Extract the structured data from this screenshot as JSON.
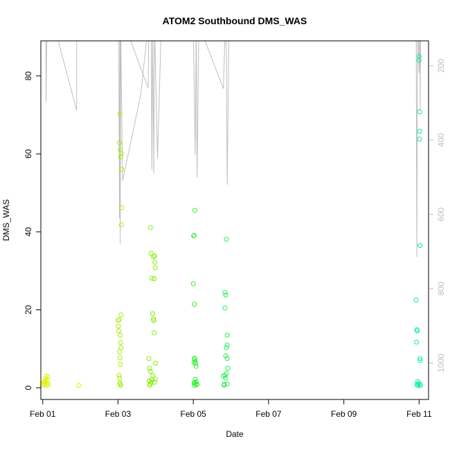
{
  "chart_data": {
    "type": "scatter",
    "title": "ATOM2 Southbound DMS_WAS",
    "xlabel": "Date",
    "ylabel": "DMS_WAS",
    "x_unit": "days (Feb)",
    "xlim": [
      0.95,
      11.25
    ],
    "ylim": [
      -3,
      89
    ],
    "x_ticks": [
      {
        "value": 1,
        "label": "Feb 01"
      },
      {
        "value": 3,
        "label": "Feb 03"
      },
      {
        "value": 5,
        "label": "Feb 05"
      },
      {
        "value": 7,
        "label": "Feb 07"
      },
      {
        "value": 9,
        "label": "Feb 09"
      },
      {
        "value": 11,
        "label": "Feb 11"
      }
    ],
    "y_ticks": [
      0,
      20,
      40,
      60,
      80
    ],
    "right_axis": {
      "color": "#bebebe",
      "reversed": true,
      "ylim": [
        1098,
        133
      ],
      "ticks": [
        200,
        400,
        600,
        800,
        1000
      ]
    },
    "series": [
      {
        "color": "#e0f000",
        "points": [
          [
            1.0,
            0.8
          ],
          [
            1.02,
            1.3
          ],
          [
            1.04,
            0.7
          ],
          [
            1.06,
            1.8
          ],
          [
            1.08,
            2.4
          ],
          [
            1.09,
            3.0
          ],
          [
            1.1,
            1.1
          ],
          [
            1.12,
            2.0
          ],
          [
            1.14,
            2.8
          ],
          [
            1.15,
            0.9
          ],
          [
            1.05,
            1.5
          ],
          [
            1.11,
            0.6
          ],
          [
            1.96,
            0.6
          ]
        ]
      },
      {
        "color": "#a8f000",
        "points": [
          [
            3.0,
            17.3
          ],
          [
            3.01,
            15.8
          ],
          [
            3.02,
            14.6
          ],
          [
            3.03,
            17.5
          ],
          [
            3.04,
            62.8
          ],
          [
            3.05,
            70.3
          ],
          [
            3.06,
            61.0
          ],
          [
            3.07,
            59.2
          ],
          [
            3.08,
            18.7
          ],
          [
            3.06,
            13.5
          ],
          [
            3.07,
            11.6
          ],
          [
            3.08,
            10.3
          ],
          [
            3.04,
            9.2
          ],
          [
            3.05,
            7.7
          ],
          [
            3.06,
            6.0
          ],
          [
            3.03,
            3.2
          ],
          [
            3.04,
            2.5
          ],
          [
            3.05,
            1.2
          ],
          [
            3.06,
            0.9
          ],
          [
            3.07,
            0.6
          ],
          [
            3.09,
            60.1
          ],
          [
            3.1,
            56.0
          ],
          [
            3.1,
            46.2
          ],
          [
            3.09,
            41.8
          ]
        ]
      },
      {
        "color": "#80f000",
        "points": [
          [
            3.82,
            7.5
          ],
          [
            3.84,
            5.0
          ],
          [
            3.86,
            4.2
          ],
          [
            3.86,
            41.1
          ],
          [
            3.88,
            34.5
          ],
          [
            3.9,
            28.1
          ],
          [
            3.92,
            19.0
          ],
          [
            3.94,
            17.6
          ],
          [
            3.95,
            17.2
          ],
          [
            3.96,
            28.0
          ],
          [
            3.97,
            33.8
          ],
          [
            3.98,
            32.2
          ],
          [
            3.99,
            30.8
          ],
          [
            3.96,
            14.1
          ],
          [
            3.94,
            33.6
          ],
          [
            3.92,
            3.1
          ],
          [
            3.9,
            2.2
          ],
          [
            3.88,
            1.5
          ],
          [
            3.86,
            1.0
          ],
          [
            3.84,
            0.6
          ],
          [
            3.83,
            1.8
          ],
          [
            4.0,
            6.3
          ],
          [
            3.97,
            1.4
          ],
          [
            3.99,
            2.2
          ]
        ]
      },
      {
        "color": "#30f030",
        "points": [
          [
            5.0,
            26.7
          ],
          [
            5.01,
            39.0
          ],
          [
            5.02,
            39.1
          ],
          [
            5.03,
            21.4
          ],
          [
            5.04,
            45.5
          ],
          [
            5.04,
            7.3
          ],
          [
            5.05,
            6.8
          ],
          [
            5.06,
            6.2
          ],
          [
            5.07,
            5.5
          ],
          [
            5.02,
            6.5
          ],
          [
            5.03,
            7.6
          ],
          [
            5.05,
            2.2
          ],
          [
            5.04,
            1.4
          ],
          [
            5.06,
            0.9
          ],
          [
            5.03,
            0.6
          ],
          [
            5.08,
            1.5
          ],
          [
            5.1,
            0.8
          ],
          [
            5.02,
            1.2
          ]
        ]
      },
      {
        "color": "#20f050",
        "points": [
          [
            5.8,
            3.0
          ],
          [
            5.82,
            0.9
          ],
          [
            5.84,
            24.5
          ],
          [
            5.86,
            23.8
          ],
          [
            5.84,
            20.5
          ],
          [
            5.88,
            38.1
          ],
          [
            5.9,
            13.5
          ],
          [
            5.9,
            11.0
          ],
          [
            5.88,
            10.3
          ],
          [
            5.86,
            8.2
          ],
          [
            5.9,
            7.5
          ],
          [
            5.92,
            5.0
          ],
          [
            5.88,
            3.7
          ],
          [
            5.84,
            3.2
          ],
          [
            5.86,
            2.5
          ],
          [
            5.9,
            1.0
          ],
          [
            5.82,
            0.7
          ]
        ]
      },
      {
        "color": "#00f090",
        "points": [
          [
            10.92,
            22.5
          ],
          [
            10.94,
            14.9
          ],
          [
            10.95,
            14.6
          ],
          [
            10.93,
            11.7
          ],
          [
            10.96,
            1.6
          ],
          [
            10.94,
            0.8
          ],
          [
            10.97,
            0.6
          ],
          [
            10.98,
            1.1
          ],
          [
            11.0,
            85.0
          ],
          [
            11.0,
            84.0
          ],
          [
            11.01,
            70.8
          ],
          [
            11.01,
            65.8
          ],
          [
            11.01,
            63.8
          ],
          [
            11.02,
            36.5
          ],
          [
            11.02,
            7.5
          ],
          [
            11.03,
            7.0
          ],
          [
            11.02,
            0.9
          ],
          [
            11.03,
            0.5
          ]
        ]
      }
    ],
    "depth_line": {
      "color": "#bebebe",
      "axis": "right",
      "points": [
        [
          0.95,
          90
        ],
        [
          1.08,
          90
        ],
        [
          1.09,
          297
        ],
        [
          1.11,
          90
        ],
        [
          1.3,
          90
        ],
        [
          1.9,
          320
        ],
        [
          1.9,
          90
        ],
        [
          2.95,
          90
        ],
        [
          3.02,
          90
        ],
        [
          3.04,
          610
        ],
        [
          3.05,
          60
        ],
        [
          3.06,
          680
        ],
        [
          3.07,
          90
        ],
        [
          3.12,
          510
        ],
        [
          3.6,
          280
        ],
        [
          3.8,
          90
        ],
        [
          3.18,
          90
        ],
        [
          3.8,
          260
        ],
        [
          3.82,
          80
        ],
        [
          3.88,
          90
        ],
        [
          3.9,
          480
        ],
        [
          3.92,
          90
        ],
        [
          3.95,
          490
        ],
        [
          3.97,
          90
        ],
        [
          4.05,
          450
        ],
        [
          4.15,
          90
        ],
        [
          5.0,
          90
        ],
        [
          5.05,
          440
        ],
        [
          5.08,
          90
        ],
        [
          5.1,
          500
        ],
        [
          5.15,
          90
        ],
        [
          5.15,
          90
        ],
        [
          5.8,
          262
        ],
        [
          5.85,
          90
        ],
        [
          5.88,
          160
        ],
        [
          5.9,
          520
        ],
        [
          5.95,
          90
        ],
        [
          5.95,
          90
        ],
        [
          5.97,
          90
        ],
        [
          10.3,
          120
        ],
        [
          10.4,
          90
        ],
        [
          10.92,
          90
        ],
        [
          10.94,
          715
        ],
        [
          10.96,
          90
        ],
        [
          10.98,
          130
        ],
        [
          11.0,
          220
        ],
        [
          11.02,
          70
        ],
        [
          11.03,
          320
        ],
        [
          11.04,
          90
        ]
      ]
    }
  }
}
